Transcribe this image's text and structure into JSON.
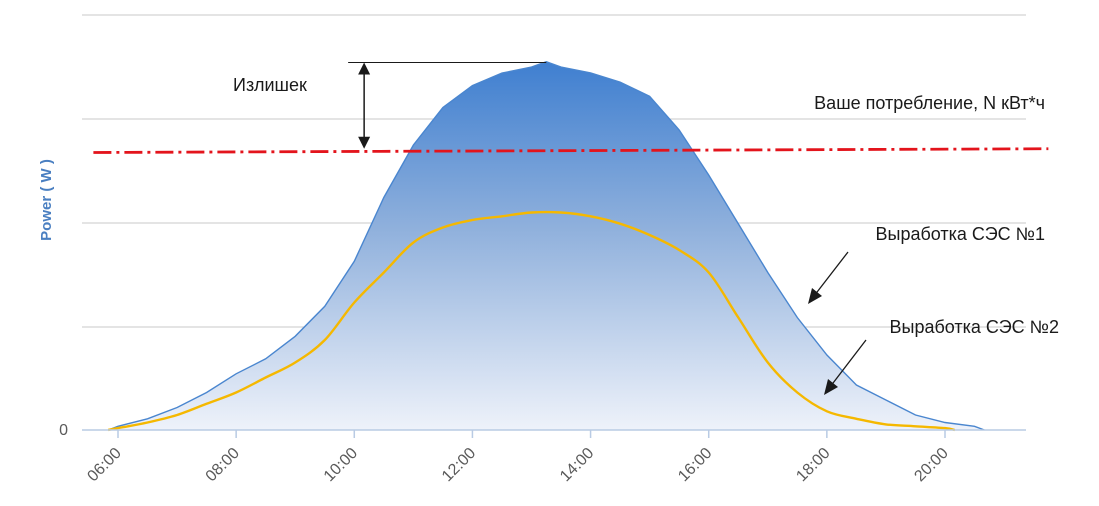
{
  "chart_data": {
    "type": "area",
    "title": "",
    "xlabel": "",
    "ylabel": "Power ( W )",
    "x_ticks": [
      "06:00",
      "08:00",
      "10:00",
      "12:00",
      "14:00",
      "16:00",
      "18:00",
      "20:00"
    ],
    "y_ticks": [
      "0"
    ],
    "xlim": [
      "05:00",
      "21:30"
    ],
    "ylim": [
      0,
      100
    ],
    "grid": true,
    "legend": "none",
    "series": [
      {
        "name": "Выработка СЭС №1",
        "kind": "filled-area",
        "color": "#4a86cf",
        "x": [
          "05:50",
          "06:00",
          "06:30",
          "07:00",
          "07:30",
          "08:00",
          "08:30",
          "09:00",
          "09:30",
          "10:00",
          "10:30",
          "11:00",
          "11:30",
          "12:00",
          "12:30",
          "13:00",
          "13:15",
          "13:30",
          "14:00",
          "14:30",
          "15:00",
          "15:30",
          "16:00",
          "16:30",
          "17:00",
          "17:30",
          "18:00",
          "18:30",
          "19:00",
          "19:30",
          "20:00",
          "20:30",
          "20:40"
        ],
        "values": [
          0,
          1,
          3,
          6,
          10,
          15,
          19,
          25,
          33,
          45,
          62,
          76,
          86,
          92,
          95,
          97,
          98,
          97,
          95,
          93,
          89,
          80,
          68,
          55,
          42,
          30,
          20,
          12,
          8,
          4,
          2,
          1,
          0
        ]
      },
      {
        "name": "Выработка СЭС №2",
        "kind": "line",
        "color": "#f5b800",
        "x": [
          "05:50",
          "06:00",
          "06:30",
          "07:00",
          "07:30",
          "08:00",
          "08:30",
          "09:00",
          "09:30",
          "10:00",
          "10:30",
          "11:00",
          "11:30",
          "12:00",
          "12:30",
          "13:00",
          "13:30",
          "14:00",
          "14:30",
          "15:00",
          "15:30",
          "16:00",
          "16:30",
          "17:00",
          "17:30",
          "18:00",
          "18:30",
          "19:00",
          "19:30",
          "20:00",
          "20:10"
        ],
        "values": [
          0,
          0.5,
          2,
          4,
          7,
          10,
          14,
          18,
          24,
          34,
          42,
          50,
          54,
          56,
          57,
          58,
          58,
          57,
          55,
          52,
          48,
          42,
          30,
          18,
          10,
          5,
          3,
          1.5,
          1,
          0.5,
          0
        ]
      },
      {
        "name": "Ваше потребление, N кВт*ч",
        "kind": "dash-dot-line",
        "color": "#e3141c",
        "x": [
          "05:35",
          "21:45"
        ],
        "values": [
          74,
          75
        ]
      }
    ],
    "annotations": [
      {
        "text": "Излишек",
        "target": "surplus-arrow",
        "x": "10:10",
        "y_from": 75,
        "y_to": 98
      },
      {
        "text": "Ваше потребление, N кВт*ч",
        "target": "consumption-line"
      },
      {
        "text": "Выработка СЭС №1",
        "target": "series-1"
      },
      {
        "text": "Выработка СЭС №2",
        "target": "series-2"
      }
    ]
  }
}
